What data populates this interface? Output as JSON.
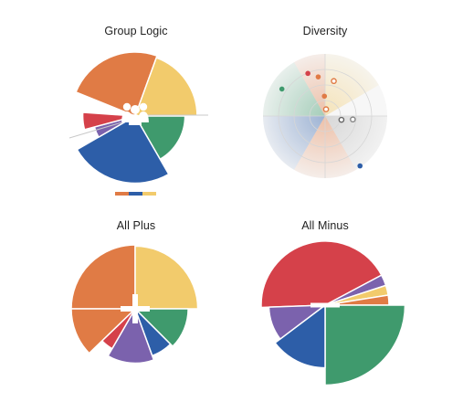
{
  "panels": [
    {
      "title": "Group Logic",
      "type": "pie",
      "slices": [
        {
          "start": 292,
          "end": 20,
          "r": 1.0,
          "color": "#e07b45"
        },
        {
          "start": 20,
          "end": 90,
          "r": 0.97,
          "color": "#f2cb6c"
        },
        {
          "start": 90,
          "end": 150,
          "r": 0.78,
          "color": "#3f9a6d"
        },
        {
          "start": 150,
          "end": 240,
          "r": 1.05,
          "color": "#2d5ea8"
        },
        {
          "start": 240,
          "end": 255,
          "r": 0.66,
          "color": "#7b62ad"
        },
        {
          "start": 255,
          "end": 274,
          "r": 0.82,
          "color": "#d5414a"
        }
      ],
      "center_icon": "people-icon",
      "legend_colors": [
        "#e07b45",
        "#2d5ea8",
        "#f2cb6c"
      ]
    },
    {
      "title": "Diversity",
      "type": "radar-scatter",
      "sectors": [
        {
          "start": 0,
          "end": 60,
          "color": "#f2cb6c"
        },
        {
          "start": 90,
          "end": 150,
          "color": "#b0b0b0"
        },
        {
          "start": 150,
          "end": 210,
          "color": "#e07b45"
        },
        {
          "start": 210,
          "end": 270,
          "color": "#2d5ea8"
        },
        {
          "start": 270,
          "end": 330,
          "color": "#3f9a6d"
        },
        {
          "start": 330,
          "end": 360,
          "color": "#e07b45"
        }
      ],
      "points": [
        {
          "angle": 338,
          "r": 0.74,
          "color": "#d5414a",
          "style": "filled"
        },
        {
          "angle": 350,
          "r": 0.64,
          "color": "#e07b45",
          "style": "filled"
        },
        {
          "angle": 14,
          "r": 0.58,
          "color": "#e07b45",
          "style": "ring"
        },
        {
          "angle": 302,
          "r": 0.82,
          "color": "#3f9a6d",
          "style": "filled"
        },
        {
          "angle": 358,
          "r": 0.32,
          "color": "#e07b45",
          "style": "filled"
        },
        {
          "angle": 8,
          "r": 0.11,
          "color": "#e07b45",
          "style": "ring"
        },
        {
          "angle": 103,
          "r": 0.27,
          "color": "#666666",
          "style": "ring"
        },
        {
          "angle": 97,
          "r": 0.45,
          "color": "#888888",
          "style": "ring"
        },
        {
          "angle": 145,
          "r": 0.98,
          "color": "#2d5ea8",
          "style": "filled"
        }
      ]
    },
    {
      "title": "All Plus",
      "type": "pie",
      "slices": [
        {
          "start": 270,
          "end": 360,
          "r": 1.0,
          "color": "#e07b45"
        },
        {
          "start": 0,
          "end": 90,
          "r": 0.98,
          "color": "#f2cb6c"
        },
        {
          "start": 90,
          "end": 135,
          "r": 0.83,
          "color": "#3f9a6d"
        },
        {
          "start": 135,
          "end": 160,
          "r": 0.78,
          "color": "#2d5ea8"
        },
        {
          "start": 160,
          "end": 210,
          "r": 0.85,
          "color": "#7b62ad"
        },
        {
          "start": 210,
          "end": 226,
          "r": 0.72,
          "color": "#d5414a"
        },
        {
          "start": 226,
          "end": 270,
          "r": 1.0,
          "color": "#e07b45"
        }
      ],
      "center_icon": "plus-icon"
    },
    {
      "title": "All Minus",
      "type": "pie",
      "slices": [
        {
          "start": 268,
          "end": 62,
          "r": 1.0,
          "color": "#d5414a"
        },
        {
          "start": 62,
          "end": 72,
          "r": 1.0,
          "color": "#7b62ad"
        },
        {
          "start": 72,
          "end": 81,
          "r": 1.0,
          "color": "#f2cb6c"
        },
        {
          "start": 81,
          "end": 90,
          "r": 1.0,
          "color": "#e07b45"
        },
        {
          "start": 90,
          "end": 180,
          "r": 1.25,
          "color": "#3f9a6d"
        },
        {
          "start": 180,
          "end": 233,
          "r": 0.98,
          "color": "#2d5ea8"
        },
        {
          "start": 233,
          "end": 268,
          "r": 0.88,
          "color": "#7b62ad"
        }
      ],
      "center_icon": "minus-icon"
    }
  ]
}
